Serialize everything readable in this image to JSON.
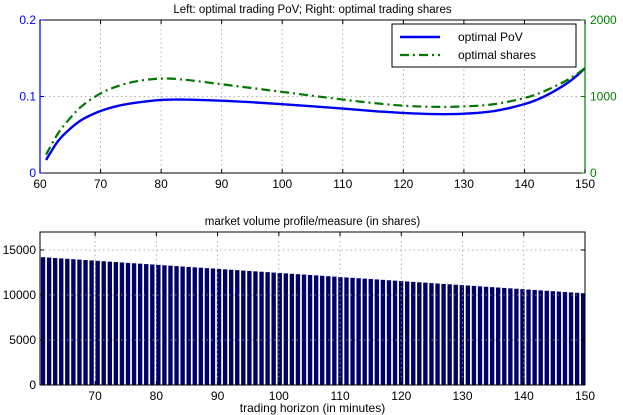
{
  "chart_data": [
    {
      "type": "line",
      "title": "Left: optimal trading PoV;  Right: optimal trading shares",
      "xlim": [
        60,
        150
      ],
      "x_ticks": [
        60,
        70,
        80,
        90,
        100,
        110,
        120,
        130,
        140,
        150
      ],
      "ylim_left": [
        0,
        0.2
      ],
      "y_ticks_left": [
        0,
        0.1,
        0.2
      ],
      "ylim_right": [
        0,
        2000
      ],
      "y_ticks_right": [
        0,
        1000,
        2000
      ],
      "grid": true,
      "legend_position": "top-right",
      "colors": {
        "left_axis": "#0000ff",
        "right_axis": "#008000",
        "pov": "#0000ee",
        "shares": "#007700"
      },
      "series": [
        {
          "name": "optimal PoV",
          "axis": "left",
          "style": "solid",
          "x": [
            61,
            63,
            65,
            67,
            70,
            73,
            76,
            80,
            83,
            85,
            90,
            95,
            100,
            105,
            110,
            115,
            120,
            125,
            130,
            135,
            140,
            143,
            146,
            148,
            150
          ],
          "y": [
            0.017,
            0.042,
            0.058,
            0.07,
            0.081,
            0.088,
            0.092,
            0.0955,
            0.096,
            0.0958,
            0.0945,
            0.0925,
            0.09,
            0.0872,
            0.0842,
            0.081,
            0.0785,
            0.077,
            0.0775,
            0.081,
            0.09,
            0.099,
            0.112,
            0.123,
            0.137
          ]
        },
        {
          "name": "optimal shares",
          "axis": "right",
          "style": "dash-dot",
          "x": [
            61,
            63,
            65,
            67,
            70,
            73,
            76,
            79,
            81,
            83,
            85,
            90,
            95,
            100,
            105,
            110,
            115,
            120,
            125,
            130,
            135,
            140,
            143,
            146,
            148,
            150
          ],
          "y": [
            240,
            520,
            720,
            880,
            1040,
            1140,
            1200,
            1230,
            1235,
            1225,
            1210,
            1160,
            1110,
            1060,
            1010,
            960,
            915,
            880,
            865,
            870,
            900,
            980,
            1060,
            1170,
            1260,
            1370
          ]
        }
      ]
    },
    {
      "type": "bar",
      "title": "market volume profile/measure (in shares)",
      "xlabel": "trading horizon (in minutes)",
      "ylabel": "",
      "xlim": [
        61,
        150
      ],
      "x_ticks": [
        70,
        80,
        90,
        100,
        110,
        120,
        130,
        140,
        150
      ],
      "ylim": [
        0,
        17000
      ],
      "y_ticks": [
        0,
        5000,
        10000,
        15000
      ],
      "grid": true,
      "bar_color": "#000066",
      "x_start": 61,
      "x_end": 150,
      "values_start": 14200,
      "values_end": 10200
    }
  ]
}
